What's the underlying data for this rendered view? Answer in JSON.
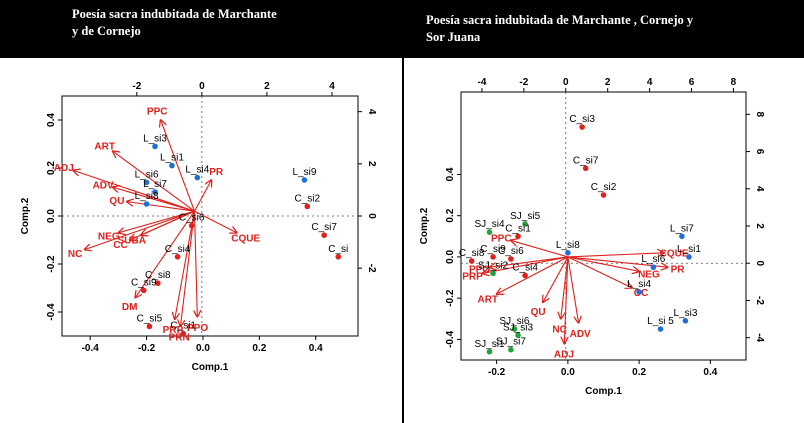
{
  "panels": [
    {
      "title": "Poesía sacra indubitada de Marchante\ny de Cornejo",
      "chart_data": {
        "type": "scatter",
        "title": "",
        "xlabel": "Comp.1",
        "ylabel": "Comp.2",
        "xlim": [
          -0.5,
          0.55
        ],
        "ylim": [
          -0.5,
          0.5
        ],
        "xticks": [
          -0.4,
          -0.2,
          0.0,
          0.2,
          0.4
        ],
        "yticks": [
          -0.4,
          -0.2,
          0.0,
          0.2,
          0.4
        ],
        "top_axis": {
          "lim": [
            -4.3,
            4.8
          ],
          "ticks": [
            -2,
            0,
            2,
            4
          ]
        },
        "right_axis": {
          "lim": [
            -4.6,
            4.6
          ],
          "ticks": [
            -2,
            0,
            2,
            4
          ]
        },
        "origin": [
          -0.03,
          0.02
        ],
        "colors": {
          "L": "#1f6fd6",
          "C": "#e0201c",
          "vector": "#e0201c"
        },
        "points": [
          {
            "label": "L_si3",
            "x": -0.17,
            "y": 0.29,
            "group": "L"
          },
          {
            "label": "L_si1",
            "x": -0.11,
            "y": 0.21,
            "group": "L"
          },
          {
            "label": "L_si4",
            "x": -0.02,
            "y": 0.16,
            "group": "L"
          },
          {
            "label": "L_si6",
            "x": -0.2,
            "y": 0.14,
            "group": "L"
          },
          {
            "label": "L_si7",
            "x": -0.17,
            "y": 0.1,
            "group": "L"
          },
          {
            "label": "L_si8",
            "x": -0.2,
            "y": 0.05,
            "group": "L"
          },
          {
            "label": "L_si9",
            "x": 0.36,
            "y": 0.15,
            "group": "L"
          },
          {
            "label": "C_si2",
            "x": 0.37,
            "y": 0.04,
            "group": "C"
          },
          {
            "label": "C_si7",
            "x": 0.43,
            "y": -0.08,
            "group": "C"
          },
          {
            "label": "C_si",
            "x": 0.48,
            "y": -0.17,
            "group": "C"
          },
          {
            "label": "C_si6",
            "x": -0.04,
            "y": -0.04,
            "group": "C"
          },
          {
            "label": "C_si4",
            "x": -0.09,
            "y": -0.17,
            "group": "C"
          },
          {
            "label": "C_si8",
            "x": -0.16,
            "y": -0.28,
            "group": "C"
          },
          {
            "label": "C_si9",
            "x": -0.21,
            "y": -0.31,
            "group": "C"
          },
          {
            "label": "C_si5",
            "x": -0.19,
            "y": -0.46,
            "group": "C"
          },
          {
            "label": "C_si1",
            "x": -0.07,
            "y": -0.49,
            "group": "C"
          }
        ],
        "vectors": [
          {
            "label": "PPC",
            "x": -0.15,
            "y": 0.4
          },
          {
            "label": "ART",
            "x": -0.32,
            "y": 0.27
          },
          {
            "label": "ADJ",
            "x": -0.46,
            "y": 0.19
          },
          {
            "label": "ADV",
            "x": -0.32,
            "y": 0.12
          },
          {
            "label": "QU",
            "x": -0.27,
            "y": 0.06
          },
          {
            "label": "NEG",
            "x": -0.3,
            "y": -0.07
          },
          {
            "label": "CC",
            "x": -0.26,
            "y": -0.1
          },
          {
            "label": "SUBA",
            "x": -0.22,
            "y": -0.08
          },
          {
            "label": "NC",
            "x": -0.42,
            "y": -0.14
          },
          {
            "label": "DM",
            "x": -0.24,
            "y": -0.34
          },
          {
            "label": "PRP",
            "x": -0.1,
            "y": -0.43
          },
          {
            "label": "PPO",
            "x": -0.02,
            "y": -0.42
          },
          {
            "label": "PRN",
            "x": -0.08,
            "y": -0.46
          },
          {
            "label": "CQUE",
            "x": 0.12,
            "y": -0.07
          },
          {
            "label": "PR",
            "x": 0.03,
            "y": 0.15
          }
        ]
      }
    },
    {
      "title": "Poesía sacra indubitada de Marchante , Cornejo y\nSor Juana",
      "chart_data": {
        "type": "scatter",
        "title": "",
        "xlabel": "Comp.1",
        "ylabel": "Comp.2",
        "xlim": [
          -0.3,
          0.5
        ],
        "ylim": [
          -0.5,
          0.8
        ],
        "xticks": [
          -0.2,
          0.0,
          0.2,
          0.4
        ],
        "yticks": [
          -0.4,
          -0.2,
          0.0,
          0.2,
          0.4
        ],
        "top_axis": {
          "lim": [
            -5.0,
            8.6
          ],
          "ticks": [
            -4,
            -2,
            0,
            2,
            4,
            6,
            8
          ]
        },
        "right_axis": {
          "lim": [
            -5.2,
            9.2
          ],
          "ticks": [
            -4,
            -2,
            0,
            2,
            4,
            6,
            8
          ]
        },
        "origin": [
          0.0,
          0.0
        ],
        "colors": {
          "L": "#1f6fd6",
          "C": "#e0201c",
          "SJ": "#22a33a",
          "vector": "#e0201c"
        },
        "points": [
          {
            "label": "C_si3",
            "x": 0.04,
            "y": 0.63,
            "group": "C"
          },
          {
            "label": "C_si7",
            "x": 0.05,
            "y": 0.43,
            "group": "C"
          },
          {
            "label": "C_si2",
            "x": 0.1,
            "y": 0.3,
            "group": "C"
          },
          {
            "label": "SJ_si4",
            "x": -0.22,
            "y": 0.12,
            "group": "SJ"
          },
          {
            "label": "SJ_si5",
            "x": -0.12,
            "y": 0.16,
            "group": "SJ"
          },
          {
            "label": "C_si1",
            "x": -0.14,
            "y": 0.1,
            "group": "C"
          },
          {
            "label": "C_si9",
            "x": -0.21,
            "y": 0.0,
            "group": "C"
          },
          {
            "label": "C_si6",
            "x": -0.16,
            "y": -0.01,
            "group": "C"
          },
          {
            "label": "C_si8",
            "x": -0.27,
            "y": -0.02,
            "group": "C"
          },
          {
            "label": "SJ_si2",
            "x": -0.21,
            "y": -0.08,
            "group": "SJ"
          },
          {
            "label": "C_si4",
            "x": -0.12,
            "y": -0.09,
            "group": "C"
          },
          {
            "label": "L_si8",
            "x": 0.0,
            "y": 0.02,
            "group": "L"
          },
          {
            "label": "L_si7",
            "x": 0.32,
            "y": 0.1,
            "group": "L"
          },
          {
            "label": "L_si1",
            "x": 0.34,
            "y": 0.0,
            "group": "L"
          },
          {
            "label": "L_si6",
            "x": 0.24,
            "y": -0.05,
            "group": "L"
          },
          {
            "label": "L_si4",
            "x": 0.2,
            "y": -0.17,
            "group": "L"
          },
          {
            "label": "L_si3",
            "x": 0.33,
            "y": -0.31,
            "group": "L"
          },
          {
            "label": "L_si 5",
            "x": 0.26,
            "y": -0.35,
            "group": "L"
          },
          {
            "label": "SJ_si6",
            "x": -0.15,
            "y": -0.35,
            "group": "SJ"
          },
          {
            "label": "SJ_si3",
            "x": -0.14,
            "y": -0.38,
            "group": "SJ"
          },
          {
            "label": "SJ_si7",
            "x": -0.16,
            "y": -0.45,
            "group": "SJ"
          },
          {
            "label": "SJ_si1",
            "x": -0.22,
            "y": -0.46,
            "group": "SJ"
          }
        ],
        "vectors": [
          {
            "label": "CQUE",
            "x": 0.27,
            "y": 0.02
          },
          {
            "label": "NEG",
            "x": 0.2,
            "y": -0.07
          },
          {
            "label": "CC",
            "x": 0.18,
            "y": -0.15
          },
          {
            "label": "PRP",
            "x": -0.24,
            "y": -0.08
          },
          {
            "label": "PPO",
            "x": -0.22,
            "y": -0.05
          },
          {
            "label": "PPC",
            "x": -0.16,
            "y": 0.08
          },
          {
            "label": "ART",
            "x": -0.2,
            "y": -0.18
          },
          {
            "label": "QU",
            "x": -0.07,
            "y": -0.22
          },
          {
            "label": "NC",
            "x": -0.02,
            "y": -0.3
          },
          {
            "label": "ADV",
            "x": 0.03,
            "y": -0.32
          },
          {
            "label": "ADJ",
            "x": -0.01,
            "y": -0.42
          },
          {
            "label": "PR",
            "x": 0.28,
            "y": -0.05
          }
        ]
      }
    }
  ]
}
